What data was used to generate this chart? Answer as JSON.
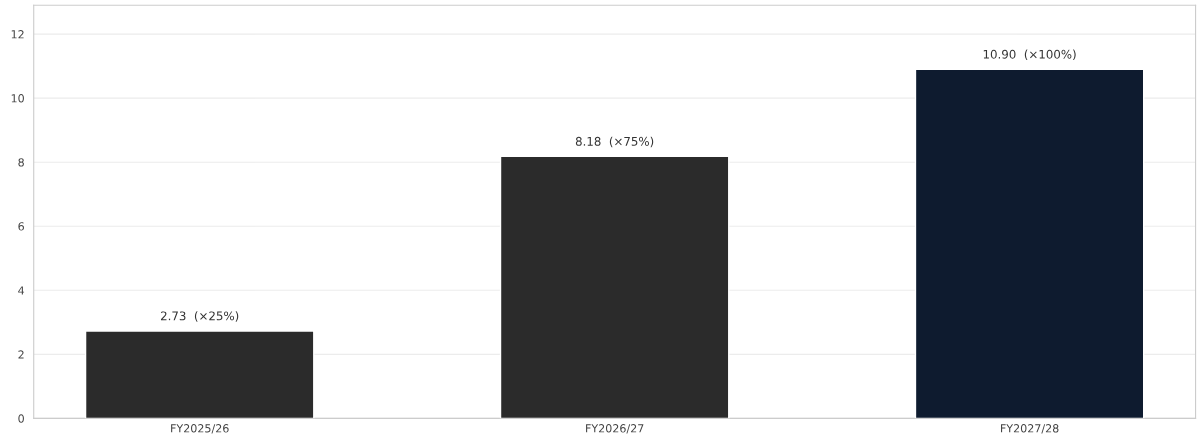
{
  "chart_data": {
    "type": "bar",
    "categories": [
      "FY2025/26",
      "FY2026/27",
      "FY2027/28"
    ],
    "values": [
      2.73,
      8.18,
      10.9
    ],
    "colors": [
      "#2b2b2b",
      "#2b2b2b",
      "#0e1b2f"
    ],
    "value_labels": [
      "2.73  (×25%)",
      "8.18  (×75%)",
      "10.90  (×100%)"
    ],
    "ylim": [
      0,
      12.9
    ],
    "yticks": [
      0,
      2,
      4,
      6,
      8,
      10,
      12
    ],
    "grid": "y"
  }
}
